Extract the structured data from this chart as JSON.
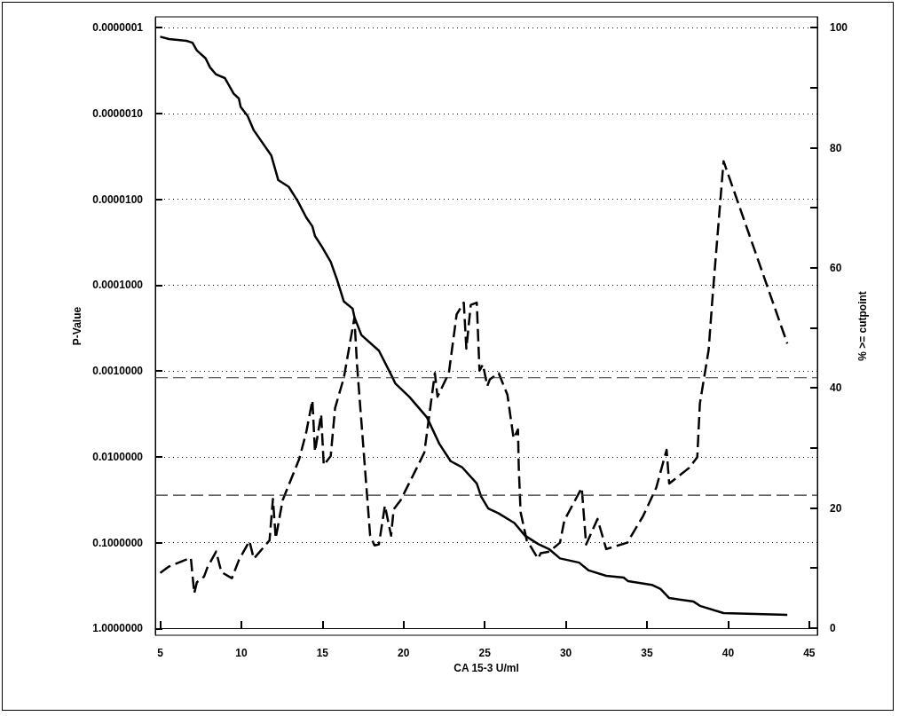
{
  "chart_data": {
    "type": "line",
    "xlabel": "CA 15-3 U/ml",
    "ylabel": "P-Value",
    "y2label": "% >= cutpoint",
    "xlim": [
      4.7,
      45.5
    ],
    "xticks": [
      5,
      10,
      15,
      20,
      25,
      30,
      35,
      40,
      45
    ],
    "ylim": [
      1.2,
      7.5e-08
    ],
    "log": "y",
    "yticks": [
      {
        "value": 1e-07,
        "label": "0.0000001"
      },
      {
        "value": 1e-06,
        "label": "0.0000010"
      },
      {
        "value": 1e-05,
        "label": "0.0000100"
      },
      {
        "value": 0.0001,
        "label": "0.0001000"
      },
      {
        "value": 0.001,
        "label": "0.0010000"
      },
      {
        "value": 0.01,
        "label": "0.0100000"
      },
      {
        "value": 0.1,
        "label": "0.1000000"
      },
      {
        "value": 1,
        "label": "1.0000000"
      }
    ],
    "y2lim": [
      -1.2,
      101.8
    ],
    "y2ticks": [
      0,
      {
        "value": 10,
        "label": null
      },
      20,
      {
        "value": 30,
        "label": null
      },
      40,
      {
        "value": 50,
        "label": null
      },
      60,
      {
        "value": 70,
        "label": null
      },
      80,
      {
        "value": 90,
        "label": null
      },
      100
    ],
    "grid": "y",
    "marker": "none",
    "ref_lines": [
      {
        "axis": "y",
        "value": 0.0012,
        "label": null,
        "color": "#333333",
        "line_style": "dashed"
      },
      {
        "axis": "y",
        "value": 0.028,
        "label": null,
        "color": "#333333",
        "line_style": "dashed"
      }
    ],
    "series": [
      {
        "color": "#000000",
        "line_style": "dashed",
        "x": [
          5.0,
          5.54,
          6.89,
          7.1,
          7.26,
          7.7,
          7.91,
          8.45,
          8.77,
          9.42,
          9.85,
          10.5,
          10.77,
          11.74,
          11.95,
          12.12,
          12.55,
          13.57,
          14.0,
          14.38,
          14.54,
          14.92,
          15.08,
          15.51,
          15.78,
          16.32,
          16.97,
          17.13,
          17.94,
          18.21,
          18.48,
          18.85,
          19.23,
          19.39,
          19.82,
          20.74,
          21.28,
          21.93,
          22.09,
          22.79,
          23.27,
          23.71,
          23.87,
          24.14,
          24.51,
          24.68,
          24.89,
          25.16,
          25.32,
          25.86,
          26.4,
          26.78,
          27.05,
          27.1,
          27.21,
          27.59,
          27.75,
          28.29,
          28.45,
          28.99,
          29.64,
          29.91,
          30.98,
          31.25,
          31.95,
          32.49,
          33.79,
          34.76,
          35.57,
          36.21,
          36.37,
          37.61,
          38.1,
          38.26,
          38.8,
          39.07,
          39.72,
          43.27,
          43.65
        ],
        "values": [
          0.225,
          0.19,
          0.15,
          0.39,
          0.29,
          0.25,
          0.195,
          0.127,
          0.22,
          0.26,
          0.16,
          0.096,
          0.154,
          0.094,
          0.031,
          0.089,
          0.032,
          0.0106,
          0.0052,
          0.0022,
          0.0087,
          0.0032,
          0.0125,
          0.0098,
          0.0027,
          0.0012,
          0.00024,
          0.00084,
          0.083,
          0.108,
          0.105,
          0.037,
          0.083,
          0.041,
          0.032,
          0.0144,
          0.0089,
          0.00106,
          0.002,
          0.00106,
          0.00022,
          0.00016,
          0.00055,
          0.00017,
          0.00016,
          0.00099,
          0.00084,
          0.0015,
          0.00125,
          0.00106,
          0.0019,
          0.0061,
          0.0048,
          0.0134,
          0.044,
          0.094,
          0.105,
          0.154,
          0.133,
          0.127,
          0.1,
          0.055,
          0.023,
          0.105,
          0.053,
          0.119,
          0.1,
          0.049,
          0.023,
          0.0083,
          0.0205,
          0.0134,
          0.0101,
          0.0024,
          0.00057,
          0.000117,
          3.6e-06,
          0.0003,
          0.00048
        ]
      },
      {
        "color": "#000000",
        "line_style": "solid",
        "axis": "y2",
        "x": [
          5.0,
          5.54,
          6.62,
          6.99,
          7.26,
          7.8,
          8.07,
          8.45,
          8.99,
          9.53,
          9.85,
          9.96,
          10.39,
          10.77,
          11.85,
          12.28,
          12.92,
          13.46,
          14.0,
          14.38,
          14.54,
          14.97,
          15.51,
          15.89,
          16.32,
          16.86,
          16.97,
          17.4,
          18.48,
          19.29,
          19.5,
          20.36,
          21.44,
          22.2,
          22.9,
          23.6,
          24.51,
          24.78,
          25.22,
          25.86,
          26.83,
          27.48,
          28.29,
          28.99,
          29.64,
          30.82,
          31.41,
          32.49,
          33.57,
          33.84,
          35.3,
          35.84,
          36.37,
          37.88,
          38.26,
          39.72,
          43.65
        ],
        "values": [
          98.5,
          98.1,
          97.8,
          97.5,
          96.2,
          94.9,
          93.4,
          92.2,
          91.6,
          89.0,
          88.2,
          86.8,
          85.3,
          82.9,
          78.7,
          74.6,
          73.5,
          71.2,
          68.4,
          66.9,
          65.3,
          63.5,
          61.0,
          58.1,
          54.4,
          53.2,
          51.8,
          48.8,
          46.2,
          41.9,
          40.7,
          38.5,
          35.1,
          30.7,
          27.8,
          26.8,
          24.1,
          21.9,
          19.9,
          19.1,
          17.5,
          15.4,
          14.0,
          13.1,
          11.6,
          10.9,
          9.6,
          8.7,
          8.4,
          7.8,
          7.2,
          6.5,
          5.0,
          4.4,
          3.7,
          2.5,
          2.2
        ]
      }
    ]
  }
}
